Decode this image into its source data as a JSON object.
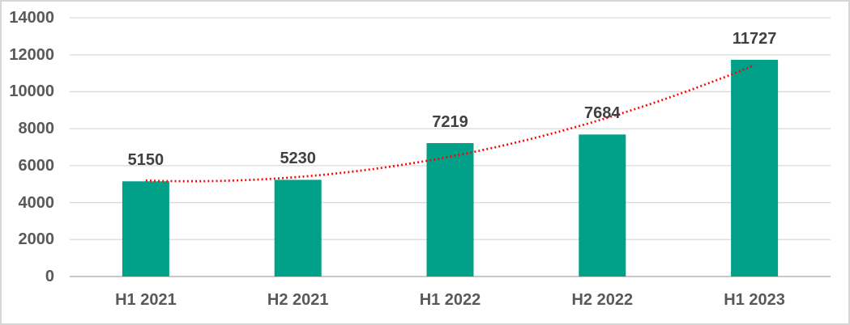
{
  "chart_data": {
    "type": "bar",
    "title": "",
    "xlabel": "",
    "ylabel": "",
    "categories": [
      "H1 2021",
      "H2 2021",
      "H1 2022",
      "H2 2022",
      "H1 2023"
    ],
    "values": [
      5150,
      5230,
      7219,
      7684,
      11727
    ],
    "ylim": [
      0,
      14000
    ],
    "ytick_step": 2000,
    "yticks": [
      0,
      2000,
      4000,
      6000,
      8000,
      10000,
      12000,
      14000
    ],
    "grid": "horizontal",
    "legend": "none",
    "bar_color": "#00A188",
    "data_label_color": "#404040",
    "axis_text_color": "#595959",
    "gridline_color": "#D9D9D9",
    "axis_line_color": "#C8C8C8",
    "frame_border_color": "#D6D6D6",
    "background_color": "#FFFFFF",
    "trendline": {
      "style": "dotted",
      "type": "polynomial_order_2",
      "color": "#FF0000",
      "values_at_categories": [
        5195,
        5384,
        6488,
        8506,
        11438
      ]
    }
  }
}
